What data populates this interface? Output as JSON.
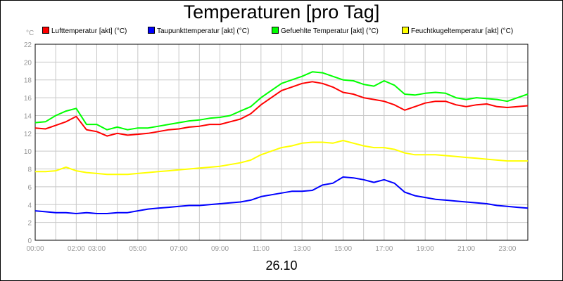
{
  "chart_data": {
    "type": "line",
    "title": "Temperaturen [pro Tag]",
    "ylabel": "°C",
    "xlabel": "26.10",
    "ylim": [
      0,
      22
    ],
    "yticks": [
      0,
      2,
      4,
      6,
      8,
      10,
      12,
      14,
      16,
      18,
      20,
      22
    ],
    "xlim": [
      0,
      24
    ],
    "xticks": [
      {
        "label": "00:00",
        "hour": 0
      },
      {
        "label": "02:00",
        "hour": 2
      },
      {
        "label": "03:00",
        "hour": 3
      },
      {
        "label": "05:00",
        "hour": 5
      },
      {
        "label": "07:00",
        "hour": 7
      },
      {
        "label": "09:00",
        "hour": 9
      },
      {
        "label": "11:00",
        "hour": 11
      },
      {
        "label": "13:00",
        "hour": 13
      },
      {
        "label": "15:00",
        "hour": 15
      },
      {
        "label": "17:00",
        "hour": 17
      },
      {
        "label": "19:00",
        "hour": 19
      },
      {
        "label": "21:00",
        "hour": 21
      },
      {
        "label": "23:00",
        "hour": 23
      }
    ],
    "grid": true,
    "legend_position": "top",
    "x": [
      0,
      0.5,
      1,
      1.5,
      2,
      2.5,
      3,
      3.5,
      4,
      4.5,
      5,
      5.5,
      6,
      6.5,
      7,
      7.5,
      8,
      8.5,
      9,
      9.5,
      10,
      10.5,
      11,
      11.5,
      12,
      12.5,
      13,
      13.5,
      14,
      14.5,
      15,
      15.5,
      16,
      16.5,
      17,
      17.5,
      18,
      18.5,
      19,
      19.5,
      20,
      20.5,
      21,
      21.5,
      22,
      22.5,
      23,
      23.5,
      24
    ],
    "series": [
      {
        "name": "Lufttemperatur [akt] (°C)",
        "color": "#ff0000",
        "values": [
          12.6,
          12.5,
          12.9,
          13.3,
          13.9,
          12.4,
          12.2,
          11.7,
          12.0,
          11.8,
          11.9,
          12.0,
          12.2,
          12.4,
          12.5,
          12.7,
          12.8,
          13.0,
          13.0,
          13.3,
          13.6,
          14.2,
          15.2,
          16.0,
          16.8,
          17.2,
          17.6,
          17.8,
          17.6,
          17.2,
          16.6,
          16.4,
          16.0,
          15.8,
          15.6,
          15.2,
          14.6,
          15.0,
          15.4,
          15.6,
          15.6,
          15.2,
          15.0,
          15.2,
          15.3,
          15.0,
          14.9,
          15.0,
          15.1
        ]
      },
      {
        "name": "Taupunkttemperatur [akt] (°C)",
        "color": "#0000ff",
        "values": [
          3.3,
          3.2,
          3.1,
          3.1,
          3.0,
          3.1,
          3.0,
          3.0,
          3.1,
          3.1,
          3.3,
          3.5,
          3.6,
          3.7,
          3.8,
          3.9,
          3.9,
          4.0,
          4.1,
          4.2,
          4.3,
          4.5,
          4.9,
          5.1,
          5.3,
          5.5,
          5.5,
          5.6,
          6.2,
          6.4,
          7.1,
          7.0,
          6.8,
          6.5,
          6.8,
          6.4,
          5.4,
          5.0,
          4.8,
          4.6,
          4.5,
          4.4,
          4.3,
          4.2,
          4.1,
          3.9,
          3.8,
          3.7,
          3.6
        ]
      },
      {
        "name": "Gefuehlte Temperatur [akt] (°C)",
        "color": "#00ff00",
        "values": [
          13.2,
          13.3,
          14.0,
          14.5,
          14.8,
          13.0,
          13.0,
          12.4,
          12.7,
          12.4,
          12.6,
          12.6,
          12.8,
          13.0,
          13.2,
          13.4,
          13.5,
          13.7,
          13.8,
          14.0,
          14.5,
          15.0,
          16.0,
          16.8,
          17.6,
          18.0,
          18.4,
          18.9,
          18.8,
          18.4,
          18.0,
          17.9,
          17.5,
          17.3,
          17.9,
          17.4,
          16.4,
          16.3,
          16.5,
          16.6,
          16.5,
          16.0,
          15.8,
          16.0,
          15.9,
          15.8,
          15.6,
          16.0,
          16.4
        ]
      },
      {
        "name": "Feuchtkugeltemperatur [akt] (°C)",
        "color": "#ffff00",
        "values": [
          7.7,
          7.7,
          7.8,
          8.2,
          7.8,
          7.6,
          7.5,
          7.4,
          7.4,
          7.4,
          7.5,
          7.6,
          7.7,
          7.8,
          7.9,
          8.0,
          8.1,
          8.2,
          8.3,
          8.5,
          8.7,
          9.0,
          9.6,
          10.0,
          10.4,
          10.6,
          10.9,
          11.0,
          11.0,
          10.9,
          11.2,
          10.9,
          10.6,
          10.4,
          10.4,
          10.2,
          9.8,
          9.6,
          9.6,
          9.6,
          9.5,
          9.4,
          9.3,
          9.2,
          9.1,
          9.0,
          8.9,
          8.9,
          8.9
        ]
      }
    ]
  }
}
